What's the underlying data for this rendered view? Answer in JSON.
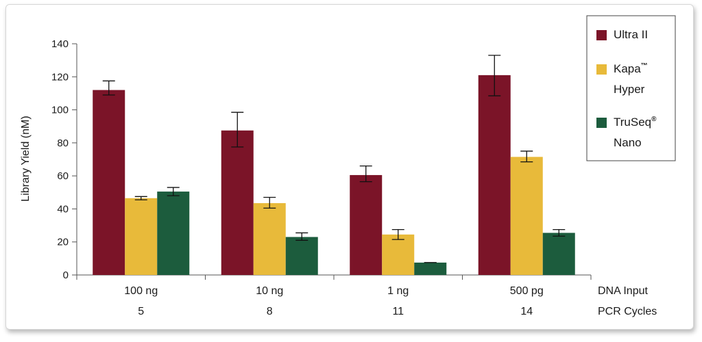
{
  "chart_data": {
    "type": "bar",
    "categories": [
      "100 ng",
      "10 ng",
      "1 ng",
      "500 pg"
    ],
    "categories_line2": [
      "5",
      "8",
      "11",
      "14"
    ],
    "row_labels": [
      "DNA Input",
      "PCR Cycles"
    ],
    "ylabel": "Library Yield (nM)",
    "ylim": [
      0,
      140
    ],
    "yticks": [
      0,
      20,
      40,
      60,
      80,
      100,
      120,
      140
    ],
    "legend_position": "right",
    "series": [
      {
        "name": "Ultra II",
        "color": "#7b1428",
        "values": [
          112,
          87.5,
          60.5,
          121
        ],
        "error": [
          [
            109,
            117.5
          ],
          [
            77.5,
            98.5
          ],
          [
            56.5,
            66
          ],
          [
            108.5,
            133
          ]
        ]
      },
      {
        "name": "Kapa™ Hyper",
        "name_lines": [
          "Kapa",
          "Hyper"
        ],
        "name_sup": "™",
        "color": "#e8ba3a",
        "values": [
          46.5,
          43.5,
          24.5,
          71.5
        ],
        "error": [
          [
            45.5,
            47.5
          ],
          [
            40.5,
            47
          ],
          [
            21.5,
            27.5
          ],
          [
            68.5,
            75
          ]
        ]
      },
      {
        "name": "TruSeq® Nano",
        "name_lines": [
          "TruSeq",
          "Nano"
        ],
        "name_sup": "®",
        "color": "#1c5c3d",
        "values": [
          50.5,
          23,
          7.5,
          25.5
        ],
        "error": [
          [
            48,
            53
          ],
          [
            21,
            25.5
          ],
          [
            7.5,
            7.5
          ],
          [
            23.5,
            27.5
          ]
        ]
      }
    ]
  }
}
